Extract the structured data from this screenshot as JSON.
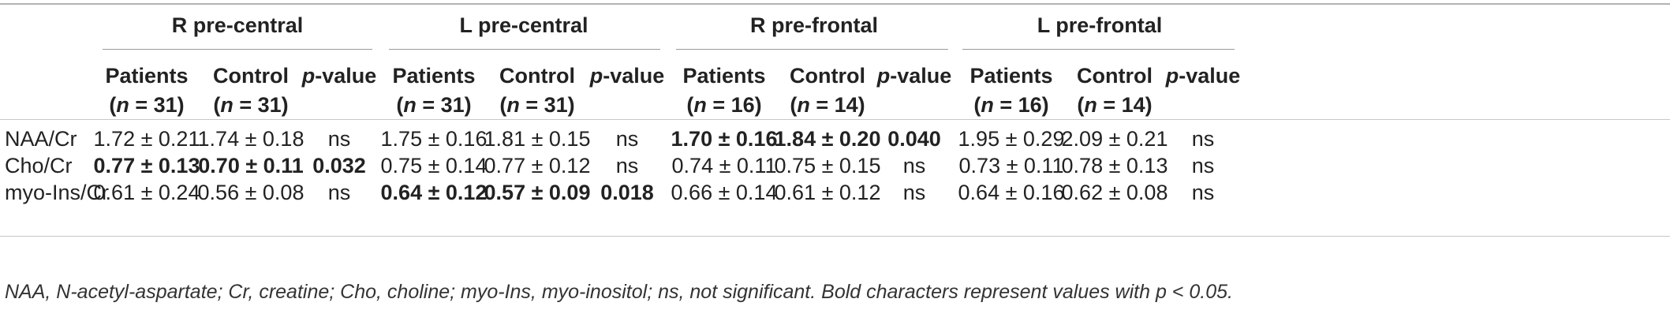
{
  "groups": [
    {
      "title": "R pre-central"
    },
    {
      "title": "L pre-central"
    },
    {
      "title": "R pre-frontal"
    },
    {
      "title": "L pre-frontal"
    }
  ],
  "subheaders": [
    [
      {
        "line1": "Patients",
        "n": "31"
      },
      {
        "line1": "Control",
        "n": "31"
      }
    ],
    [
      {
        "line1": "Patients",
        "n": "31"
      },
      {
        "line1": "Control",
        "n": "31"
      }
    ],
    [
      {
        "line1": "Patients",
        "n": "16"
      },
      {
        "line1": "Control",
        "n": "14"
      }
    ],
    [
      {
        "line1": "Patients",
        "n": "16"
      },
      {
        "line1": "Control",
        "n": "14"
      }
    ]
  ],
  "pvalue_label_italic": "p",
  "pvalue_label_rest": "-value",
  "rows": [
    {
      "label": "NAA/Cr",
      "cells": [
        "1.72 ± 0.21",
        "1.74 ± 0.18",
        "ns",
        "1.75 ± 0.16",
        "1.81 ± 0.15",
        "ns",
        "1.70 ± 0.16",
        "1.84 ± 0.20",
        "0.040",
        "1.95 ± 0.29",
        "2.09 ± 0.21",
        "ns"
      ],
      "bold": [
        false,
        false,
        false,
        false,
        false,
        false,
        true,
        true,
        true,
        false,
        false,
        false
      ]
    },
    {
      "label": "Cho/Cr",
      "cells": [
        "0.77 ± 0.13",
        "0.70 ± 0.11",
        "0.032",
        "0.75 ± 0.14",
        "0.77 ± 0.12",
        "ns",
        "0.74 ± 0.11",
        "0.75 ± 0.15",
        "ns",
        "0.73 ± 0.11",
        "0.78 ± 0.13",
        "ns"
      ],
      "bold": [
        true,
        true,
        true,
        false,
        false,
        false,
        false,
        false,
        false,
        false,
        false,
        false
      ]
    },
    {
      "label": "myo-Ins/Cr",
      "cells": [
        "0.61 ± 0.24",
        "0.56 ± 0.08",
        "ns",
        "0.64 ± 0.12",
        "0.57 ± 0.09",
        "0.018",
        "0.66 ± 0.14",
        "0.61 ± 0.12",
        "ns",
        "0.64 ± 0.16",
        "0.62 ± 0.08",
        "ns"
      ],
      "bold": [
        false,
        false,
        false,
        true,
        true,
        true,
        false,
        false,
        false,
        false,
        false,
        false
      ]
    }
  ],
  "footnote": "NAA, N-acetyl-aspartate; Cr, creatine; Cho, choline; myo-Ins, myo-inositol; ns, not significant. Bold characters represent values with p < 0.05."
}
